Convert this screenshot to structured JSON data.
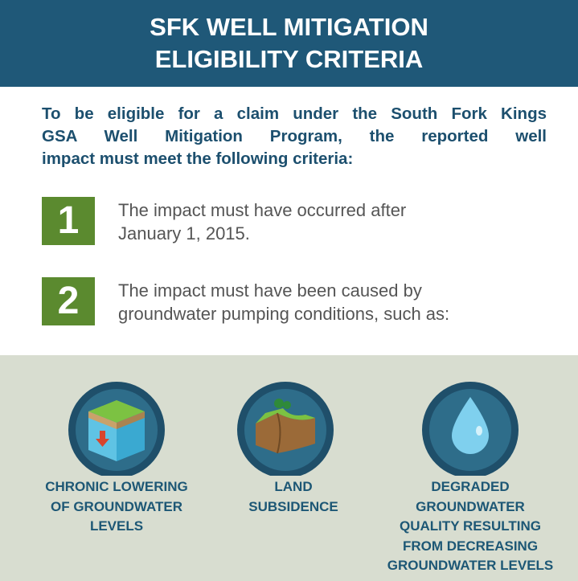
{
  "header": {
    "title_lines": [
      "SFK WELL MITIGATION",
      "ELIGIBILITY CRITERIA"
    ]
  },
  "intro_lines": [
    "To be eligible for a claim under the South Fork Kings",
    "GSA Well Mitigation Program, the reported well",
    "impact must meet the following criteria:"
  ],
  "criteria": [
    {
      "number": "1",
      "text_lines": [
        "The impact must have occurred after",
        "January 1, 2015."
      ]
    },
    {
      "number": "2",
      "text_lines": [
        "The impact must have been caused by",
        "groundwater pumping conditions, such as:"
      ]
    }
  ],
  "conditions": [
    {
      "label_lines": [
        "CHRONIC LOWERING",
        "OF GROUNDWATER",
        "LEVELS"
      ]
    },
    {
      "label_lines": [
        "LAND",
        "SUBSIDENCE"
      ]
    },
    {
      "label_lines": [
        "DEGRADED",
        "GROUNDWATER",
        "QUALITY RESULTING",
        "FROM DECREASING",
        "GROUNDWATER LEVELS"
      ]
    }
  ]
}
